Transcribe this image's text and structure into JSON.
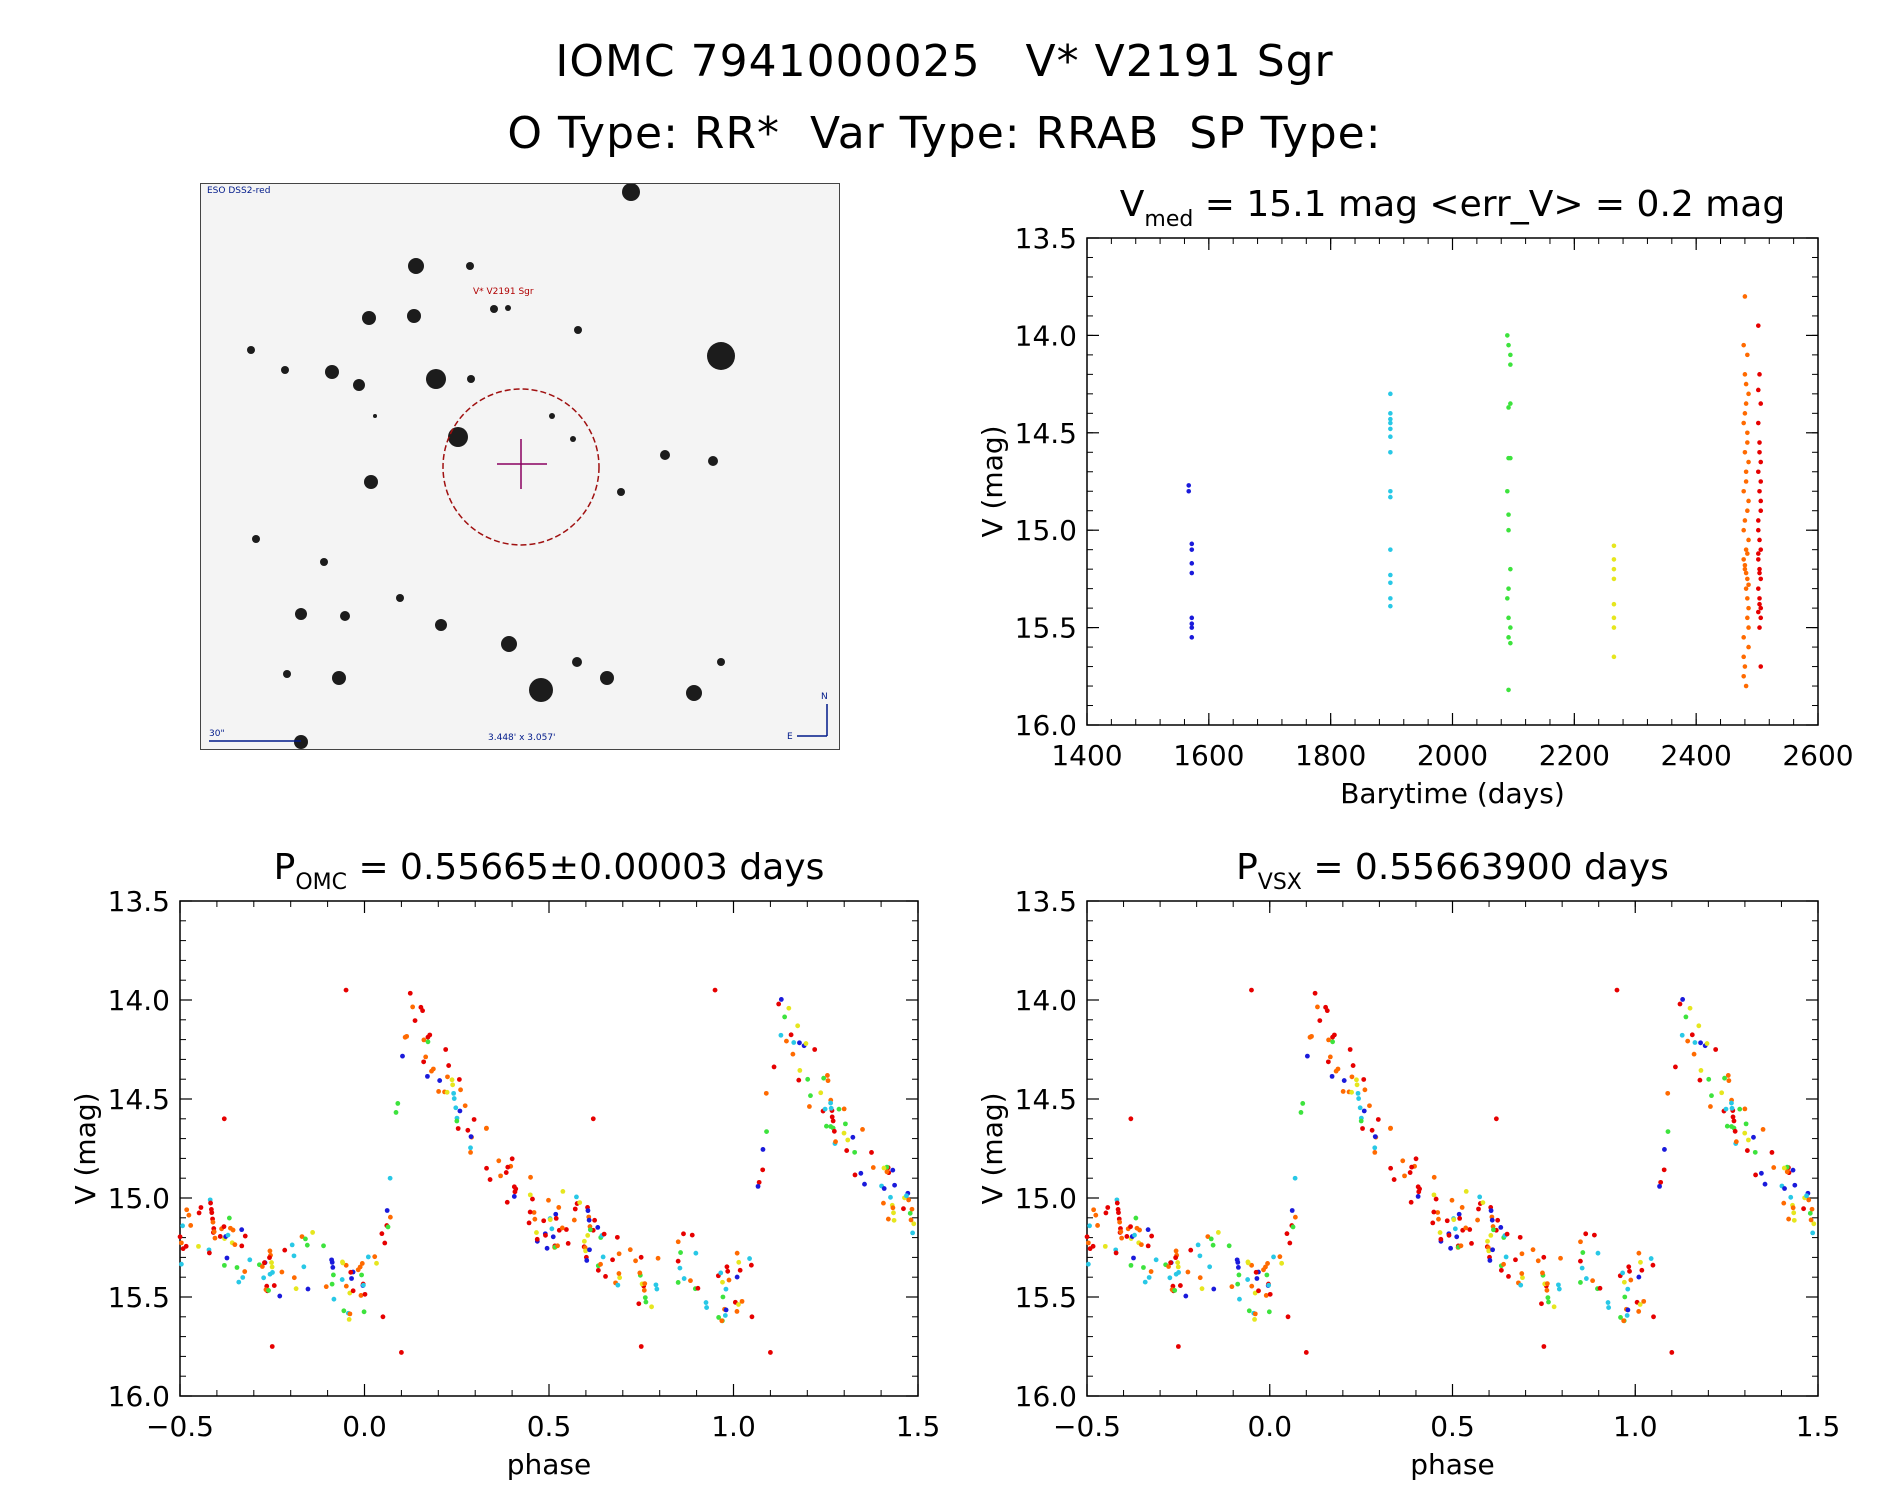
{
  "header": {
    "line1": "IOMC 7941000025   V* V2191 Sgr",
    "line2": "O Type: RR*  Var Type: RRAB  SP Type:"
  },
  "finder": {
    "survey_label": "ESO DSS2-red",
    "target_label": "V* V2191 Sgr",
    "scale_label": "30\"",
    "fov_label": "3.448' x 3.057'",
    "north_label": "N",
    "east_label": "E"
  },
  "colors": {
    "season1": "#1a1adb",
    "season2": "#28c8e6",
    "season3": "#3de33d",
    "season4": "#e6e61e",
    "season5": "#ff6a00",
    "season6": "#e60000"
  },
  "chart_data": [
    {
      "type": "scatter",
      "title_prefix": "V",
      "title_sub": "med",
      "title_suffix": " = 15.1 mag <err_V> = 0.2 mag",
      "xlabel": "Barytime (days)",
      "ylabel": "V (mag)",
      "xlim": [
        1400,
        2600
      ],
      "ylim": [
        16.0,
        13.5
      ],
      "xticks": [
        "1400",
        "1600",
        "1800",
        "2000",
        "2200",
        "2400",
        "2600"
      ],
      "yticks": [
        "13.5",
        "14.0",
        "14.5",
        "15.0",
        "15.5",
        "16.0"
      ],
      "series": [
        {
          "color": "#1a1adb",
          "x": [
            1567,
            1567,
            1572,
            1572,
            1572,
            1572,
            1572,
            1572,
            1572,
            1572
          ],
          "y": [
            14.77,
            14.8,
            15.07,
            15.1,
            15.17,
            15.22,
            15.45,
            15.48,
            15.55,
            15.5
          ]
        },
        {
          "color": "#28c8e6",
          "x": [
            1898,
            1898,
            1898,
            1898,
            1898,
            1898,
            1898,
            1898,
            1898,
            1898,
            1898,
            1898,
            1898,
            1898
          ],
          "y": [
            14.3,
            14.4,
            14.43,
            14.45,
            14.48,
            14.52,
            14.6,
            14.8,
            14.83,
            15.1,
            15.23,
            15.27,
            15.35,
            15.39
          ]
        },
        {
          "color": "#3de33d",
          "x": [
            2090,
            2092,
            2095,
            2095,
            2095,
            2092,
            2092,
            2095,
            2090,
            2092,
            2092,
            2095,
            2092,
            2090,
            2092,
            2095,
            2092,
            2095,
            2092
          ],
          "y": [
            14.0,
            14.05,
            14.1,
            14.15,
            14.35,
            14.37,
            14.63,
            14.63,
            14.8,
            14.92,
            15.0,
            15.2,
            15.3,
            15.35,
            15.45,
            15.5,
            15.55,
            15.58,
            15.82
          ]
        },
        {
          "color": "#e6e61e",
          "x": [
            2265,
            2265,
            2265,
            2265,
            2265,
            2265,
            2265,
            2265
          ],
          "y": [
            15.08,
            15.15,
            15.2,
            15.25,
            15.38,
            15.45,
            15.5,
            15.65
          ]
        },
        {
          "color": "#ff6a00",
          "x": [
            2478,
            2480,
            2482,
            2484,
            2486,
            2478,
            2480,
            2482,
            2484,
            2486,
            2478,
            2480,
            2482,
            2484,
            2486,
            2478,
            2480,
            2482,
            2484,
            2486,
            2478,
            2480,
            2482,
            2484,
            2486,
            2478,
            2480,
            2482,
            2484,
            2486,
            2478,
            2480,
            2482,
            2484,
            2486,
            2478,
            2480,
            2482,
            2484,
            2486
          ],
          "y": [
            14.05,
            14.2,
            14.35,
            14.5,
            14.65,
            14.8,
            14.95,
            15.1,
            15.25,
            15.4,
            15.55,
            15.7,
            15.8,
            14.1,
            14.3,
            14.45,
            14.6,
            14.75,
            14.9,
            15.05,
            15.15,
            15.2,
            15.3,
            15.45,
            15.6,
            15.75,
            13.8,
            14.25,
            14.55,
            14.85,
            15.0,
            15.18,
            15.22,
            15.35,
            15.5,
            15.65,
            14.4,
            14.7,
            15.12,
            15.28
          ]
        },
        {
          "color": "#e60000",
          "x": [
            2502,
            2504,
            2506,
            2502,
            2504,
            2506,
            2502,
            2504,
            2506,
            2502,
            2504,
            2506,
            2502,
            2504,
            2506,
            2502,
            2504,
            2506,
            2502,
            2504,
            2506,
            2502,
            2504,
            2506,
            2502,
            2504,
            2506,
            2502,
            2504,
            2506
          ],
          "y": [
            13.95,
            14.2,
            14.35,
            14.45,
            14.55,
            14.65,
            14.7,
            14.8,
            14.9,
            15.0,
            15.05,
            15.1,
            15.15,
            15.2,
            15.25,
            15.3,
            15.35,
            15.4,
            15.42,
            15.5,
            15.7,
            14.28,
            14.6,
            14.85,
            15.12,
            15.38,
            14.75,
            14.95,
            15.22,
            15.45
          ]
        }
      ]
    },
    {
      "type": "scatter",
      "title_prefix": "P",
      "title_sub": "OMC",
      "title_suffix": " = 0.55665±0.00003 days",
      "xlabel": "phase",
      "ylabel": "V (mag)",
      "xlim": [
        -0.5,
        1.5
      ],
      "ylim": [
        16.0,
        13.5
      ],
      "xticks": [
        "−0.5",
        "0.0",
        "0.5",
        "1.0",
        "1.5"
      ],
      "yticks": [
        "13.5",
        "14.0",
        "14.5",
        "15.0",
        "15.5",
        "16.0"
      ],
      "phase_curve": {
        "phase": [
          -0.5,
          -0.46,
          -0.42,
          -0.38,
          -0.34,
          -0.3,
          -0.26,
          -0.22,
          -0.18,
          -0.14,
          -0.1,
          -0.06,
          -0.02,
          0.02,
          0.06,
          0.08,
          0.1,
          0.12,
          0.14,
          0.16,
          0.2,
          0.24,
          0.28,
          0.32,
          0.36,
          0.4,
          0.44,
          0.48
        ],
        "mag": [
          15.2,
          15.1,
          15.15,
          15.22,
          15.3,
          15.35,
          15.4,
          15.42,
          15.35,
          15.3,
          15.35,
          15.45,
          15.5,
          15.4,
          15.15,
          14.8,
          14.35,
          14.1,
          14.05,
          14.2,
          14.38,
          14.48,
          14.6,
          14.72,
          14.82,
          14.92,
          15.02,
          15.12
        ]
      },
      "outliers": {
        "phase": [
          -0.38,
          -0.05,
          0.22,
          0.1,
          -0.25,
          0.05
        ],
        "mag": [
          14.6,
          13.95,
          14.25,
          15.78,
          15.75,
          15.6
        ]
      }
    },
    {
      "type": "scatter",
      "title_prefix": "P",
      "title_sub": "VSX",
      "title_suffix": " = 0.55663900 days",
      "xlabel": "phase",
      "ylabel": "V (mag)",
      "xlim": [
        -0.5,
        1.5
      ],
      "ylim": [
        16.0,
        13.5
      ],
      "xticks": [
        "−0.5",
        "0.0",
        "0.5",
        "1.0",
        "1.5"
      ],
      "yticks": [
        "13.5",
        "14.0",
        "14.5",
        "15.0",
        "15.5",
        "16.0"
      ],
      "phase_curve": {
        "phase": [
          -0.5,
          -0.46,
          -0.42,
          -0.38,
          -0.34,
          -0.3,
          -0.26,
          -0.22,
          -0.18,
          -0.14,
          -0.1,
          -0.06,
          -0.02,
          0.02,
          0.06,
          0.08,
          0.1,
          0.12,
          0.14,
          0.16,
          0.2,
          0.24,
          0.28,
          0.32,
          0.36,
          0.4,
          0.44,
          0.48
        ],
        "mag": [
          15.2,
          15.1,
          15.15,
          15.22,
          15.3,
          15.35,
          15.4,
          15.42,
          15.35,
          15.3,
          15.35,
          15.45,
          15.5,
          15.4,
          15.15,
          14.8,
          14.35,
          14.1,
          14.05,
          14.2,
          14.38,
          14.48,
          14.6,
          14.72,
          14.82,
          14.92,
          15.02,
          15.12
        ]
      },
      "outliers": {
        "phase": [
          -0.38,
          -0.05,
          0.22,
          0.1,
          -0.25,
          0.05
        ],
        "mag": [
          14.6,
          13.95,
          14.25,
          15.78,
          15.75,
          15.6
        ]
      }
    }
  ]
}
